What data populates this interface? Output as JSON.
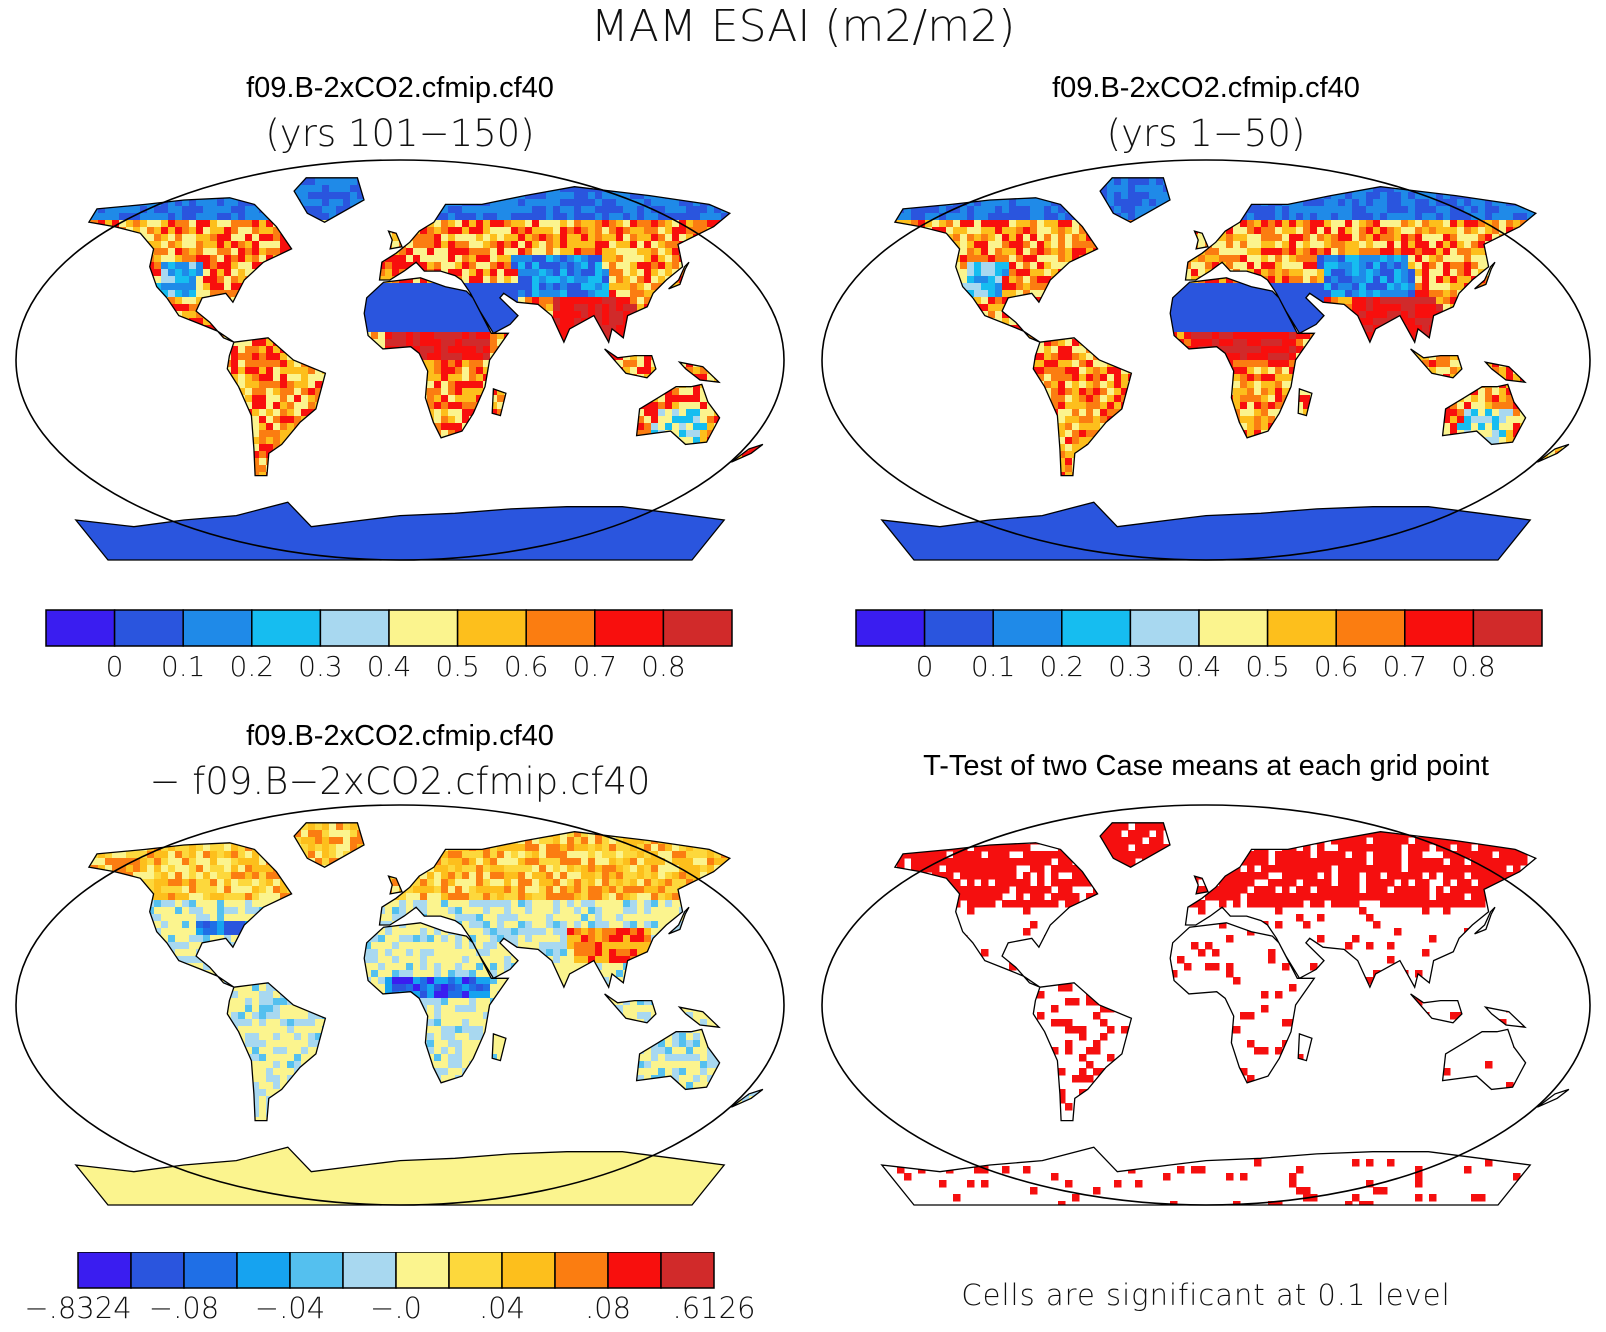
{
  "figure_title": "MAM ESAI (m2/m2)",
  "panels": {
    "top_left": {
      "title": "f09.B-2xCO2.cfmip.cf40",
      "subtitle": "(yrs 101−150)"
    },
    "top_right": {
      "title": "f09.B-2xCO2.cfmip.cf40",
      "subtitle": "(yrs 1−50)"
    },
    "bottom_left": {
      "title": "f09.B-2xCO2.cfmip.cf40",
      "subtitle": "− f09.B−2xCO2.cfmip.cf40"
    },
    "bottom_right": {
      "title": "T-Test of two Case means at each grid point",
      "note": "Cells are significant at 0.1 level"
    }
  },
  "colorbars": {
    "abs": {
      "labels": [
        "0",
        "0.1",
        "0.2",
        "0.3",
        "0.4",
        "0.5",
        "0.6",
        "0.7",
        "0.8"
      ],
      "colors": [
        "#3a1df0",
        "#2a55de",
        "#1f8ae8",
        "#16bdf0",
        "#a8d8f0",
        "#fbf48e",
        "#fdbf1c",
        "#fb7d11",
        "#f80f0d",
        "#d12a2a"
      ]
    },
    "diff": {
      "labels": [
        "−.8324",
        "−.08",
        "−.04",
        "−.0",
        ".04",
        ".08",
        ".6126"
      ],
      "colors": [
        "#3a1df0",
        "#2a55de",
        "#1f6fe6",
        "#16a3f0",
        "#54c0ef",
        "#a8d8f0",
        "#fbf48e",
        "#fdd83c",
        "#fdbf1c",
        "#fb7d11",
        "#f80f0d",
        "#d12a2a"
      ]
    }
  },
  "map_colors": {
    "ocean": "#ffffff",
    "outline": "#000000",
    "significant": "#f50f0f"
  }
}
